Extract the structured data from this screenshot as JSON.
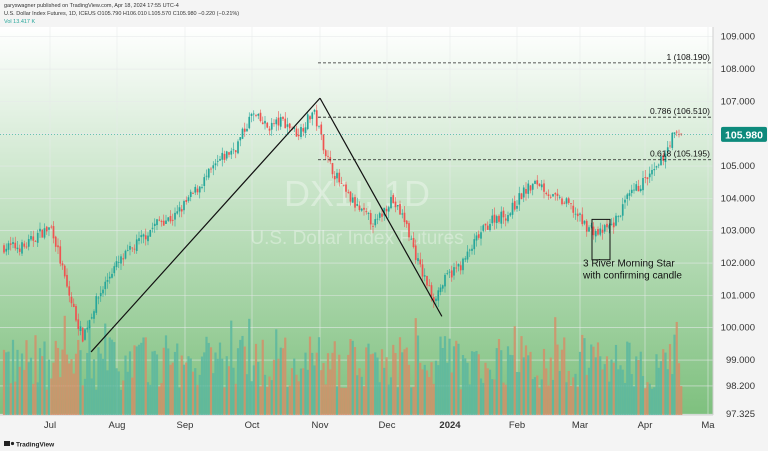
{
  "header": {
    "publisher": "garyswagner published on TradingView.com, Apr 18, 2024 17:55 UTC-4",
    "symbol_line": "U.S. Dollar Index Futures, 1D, ICEUS  O105.790  H106.010  L105.570  C105.980  −0.220 (−0.21%)",
    "volume_line": "Vol  13.417 K"
  },
  "watermark": {
    "symbol": "DX1!, 1D",
    "name": "U.S. Dollar Index Futures"
  },
  "footer": {
    "brand": "TradingView"
  },
  "colors": {
    "up": "#26a69a",
    "down": "#ef5350",
    "price_badge": "#0d8a7c",
    "background_top": "#ffffff",
    "background_bottom": "#7ec07e"
  },
  "chart_data": {
    "type": "candlestick",
    "title": "",
    "xlabel": "",
    "ylabel": "",
    "ylim": [
      97.0,
      109.6
    ],
    "grid": true,
    "y_ticks": [
      "109.000",
      "108.000",
      "107.000",
      "106.000",
      "105.000",
      "104.000",
      "103.000",
      "102.000",
      "101.000",
      "100.000",
      "99.000",
      "98.200",
      "97.325"
    ],
    "x_ticks": [
      "Jul",
      "Aug",
      "Sep",
      "Oct",
      "Nov",
      "Dec",
      "2024",
      "Feb",
      "Mar",
      "Apr",
      "Ma"
    ],
    "last_price": "105.980",
    "fib_levels": [
      {
        "label": "1 (108.190)",
        "value": 108.19
      },
      {
        "label": "0.786 (106.510)",
        "value": 106.51
      },
      {
        "label": "0.618 (105.195)",
        "value": 105.195
      }
    ],
    "annotation": [
      "3 River Morning Star",
      "with confirming candle"
    ],
    "trendlines": [
      {
        "from": [
          "Jul 20",
          99.25
        ],
        "to": [
          "Nov 1",
          107.1
        ]
      },
      {
        "from": [
          "Nov 1",
          107.1
        ],
        "to": [
          "Dec 28",
          100.35
        ]
      }
    ],
    "price_path": [
      [
        "Jun 19",
        102.5
      ],
      [
        "Jun 26",
        102.9
      ],
      [
        "Jul 3",
        103.1
      ],
      [
        "Jul 10",
        101.2
      ],
      [
        "Jul 17",
        99.7
      ],
      [
        "Jul 24",
        100.9
      ],
      [
        "Jul 31",
        101.8
      ],
      [
        "Aug 7",
        102.3
      ],
      [
        "Aug 14",
        102.8
      ],
      [
        "Aug 21",
        103.3
      ],
      [
        "Aug 28",
        103.4
      ],
      [
        "Sep 4",
        104.0
      ],
      [
        "Sep 11",
        104.6
      ],
      [
        "Sep 18",
        105.2
      ],
      [
        "Sep 25",
        105.6
      ],
      [
        "Oct 2",
        106.6
      ],
      [
        "Oct 9",
        106.2
      ],
      [
        "Oct 16",
        106.4
      ],
      [
        "Oct 23",
        106.0
      ],
      [
        "Oct 30",
        106.7
      ],
      [
        "Nov 6",
        105.1
      ],
      [
        "Nov 13",
        104.2
      ],
      [
        "Nov 20",
        103.6
      ],
      [
        "Nov 27",
        103.2
      ],
      [
        "Dec 4",
        104.0
      ],
      [
        "Dec 11",
        103.3
      ],
      [
        "Dec 18",
        101.9
      ],
      [
        "Dec 25",
        100.9
      ],
      [
        "Jan 1",
        101.6
      ],
      [
        "Jan 8",
        102.0
      ],
      [
        "Jan 15",
        102.8
      ],
      [
        "Jan 22",
        103.4
      ],
      [
        "Jan 29",
        103.5
      ],
      [
        "Feb 5",
        104.2
      ],
      [
        "Feb 12",
        104.5
      ],
      [
        "Feb 19",
        104.0
      ],
      [
        "Feb 26",
        103.8
      ],
      [
        "Mar 4",
        103.2
      ],
      [
        "Mar 11",
        102.9
      ],
      [
        "Mar 18",
        103.2
      ],
      [
        "Mar 25",
        104.0
      ],
      [
        "Apr 1",
        104.5
      ],
      [
        "Apr 8",
        104.9
      ],
      [
        "Apr 15",
        105.9
      ],
      [
        "Apr 18",
        105.98
      ]
    ]
  }
}
